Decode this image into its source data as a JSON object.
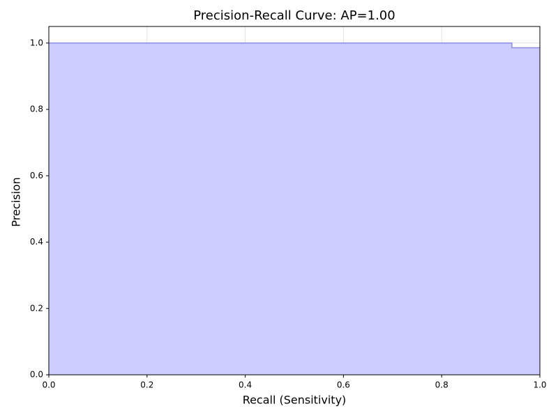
{
  "chart_data": {
    "type": "step-area",
    "title": "Precision-Recall Curve: AP=1.00",
    "x_label": "Recall (Sensitivity)",
    "y_label": "Precision",
    "x": [
      0,
      0.943,
      1.0
    ],
    "values": [
      1.0,
      0.986,
      0.986
    ],
    "step": "post",
    "line_color": "#8c8ce8",
    "fill_color": "#ccccff",
    "xlim": [
      0,
      1.0
    ],
    "ylim": [
      0,
      1.05
    ],
    "xticks": [
      {
        "value": 0,
        "label": "0.0"
      },
      0.2,
      0.4,
      0.6,
      0.8,
      {
        "value": 1,
        "label": "1.0"
      }
    ],
    "yticks": [
      {
        "value": 0,
        "label": "0.0"
      },
      0.2,
      0.4,
      0.6,
      0.8,
      {
        "value": 1,
        "label": "1.0"
      }
    ],
    "grid": true
  }
}
